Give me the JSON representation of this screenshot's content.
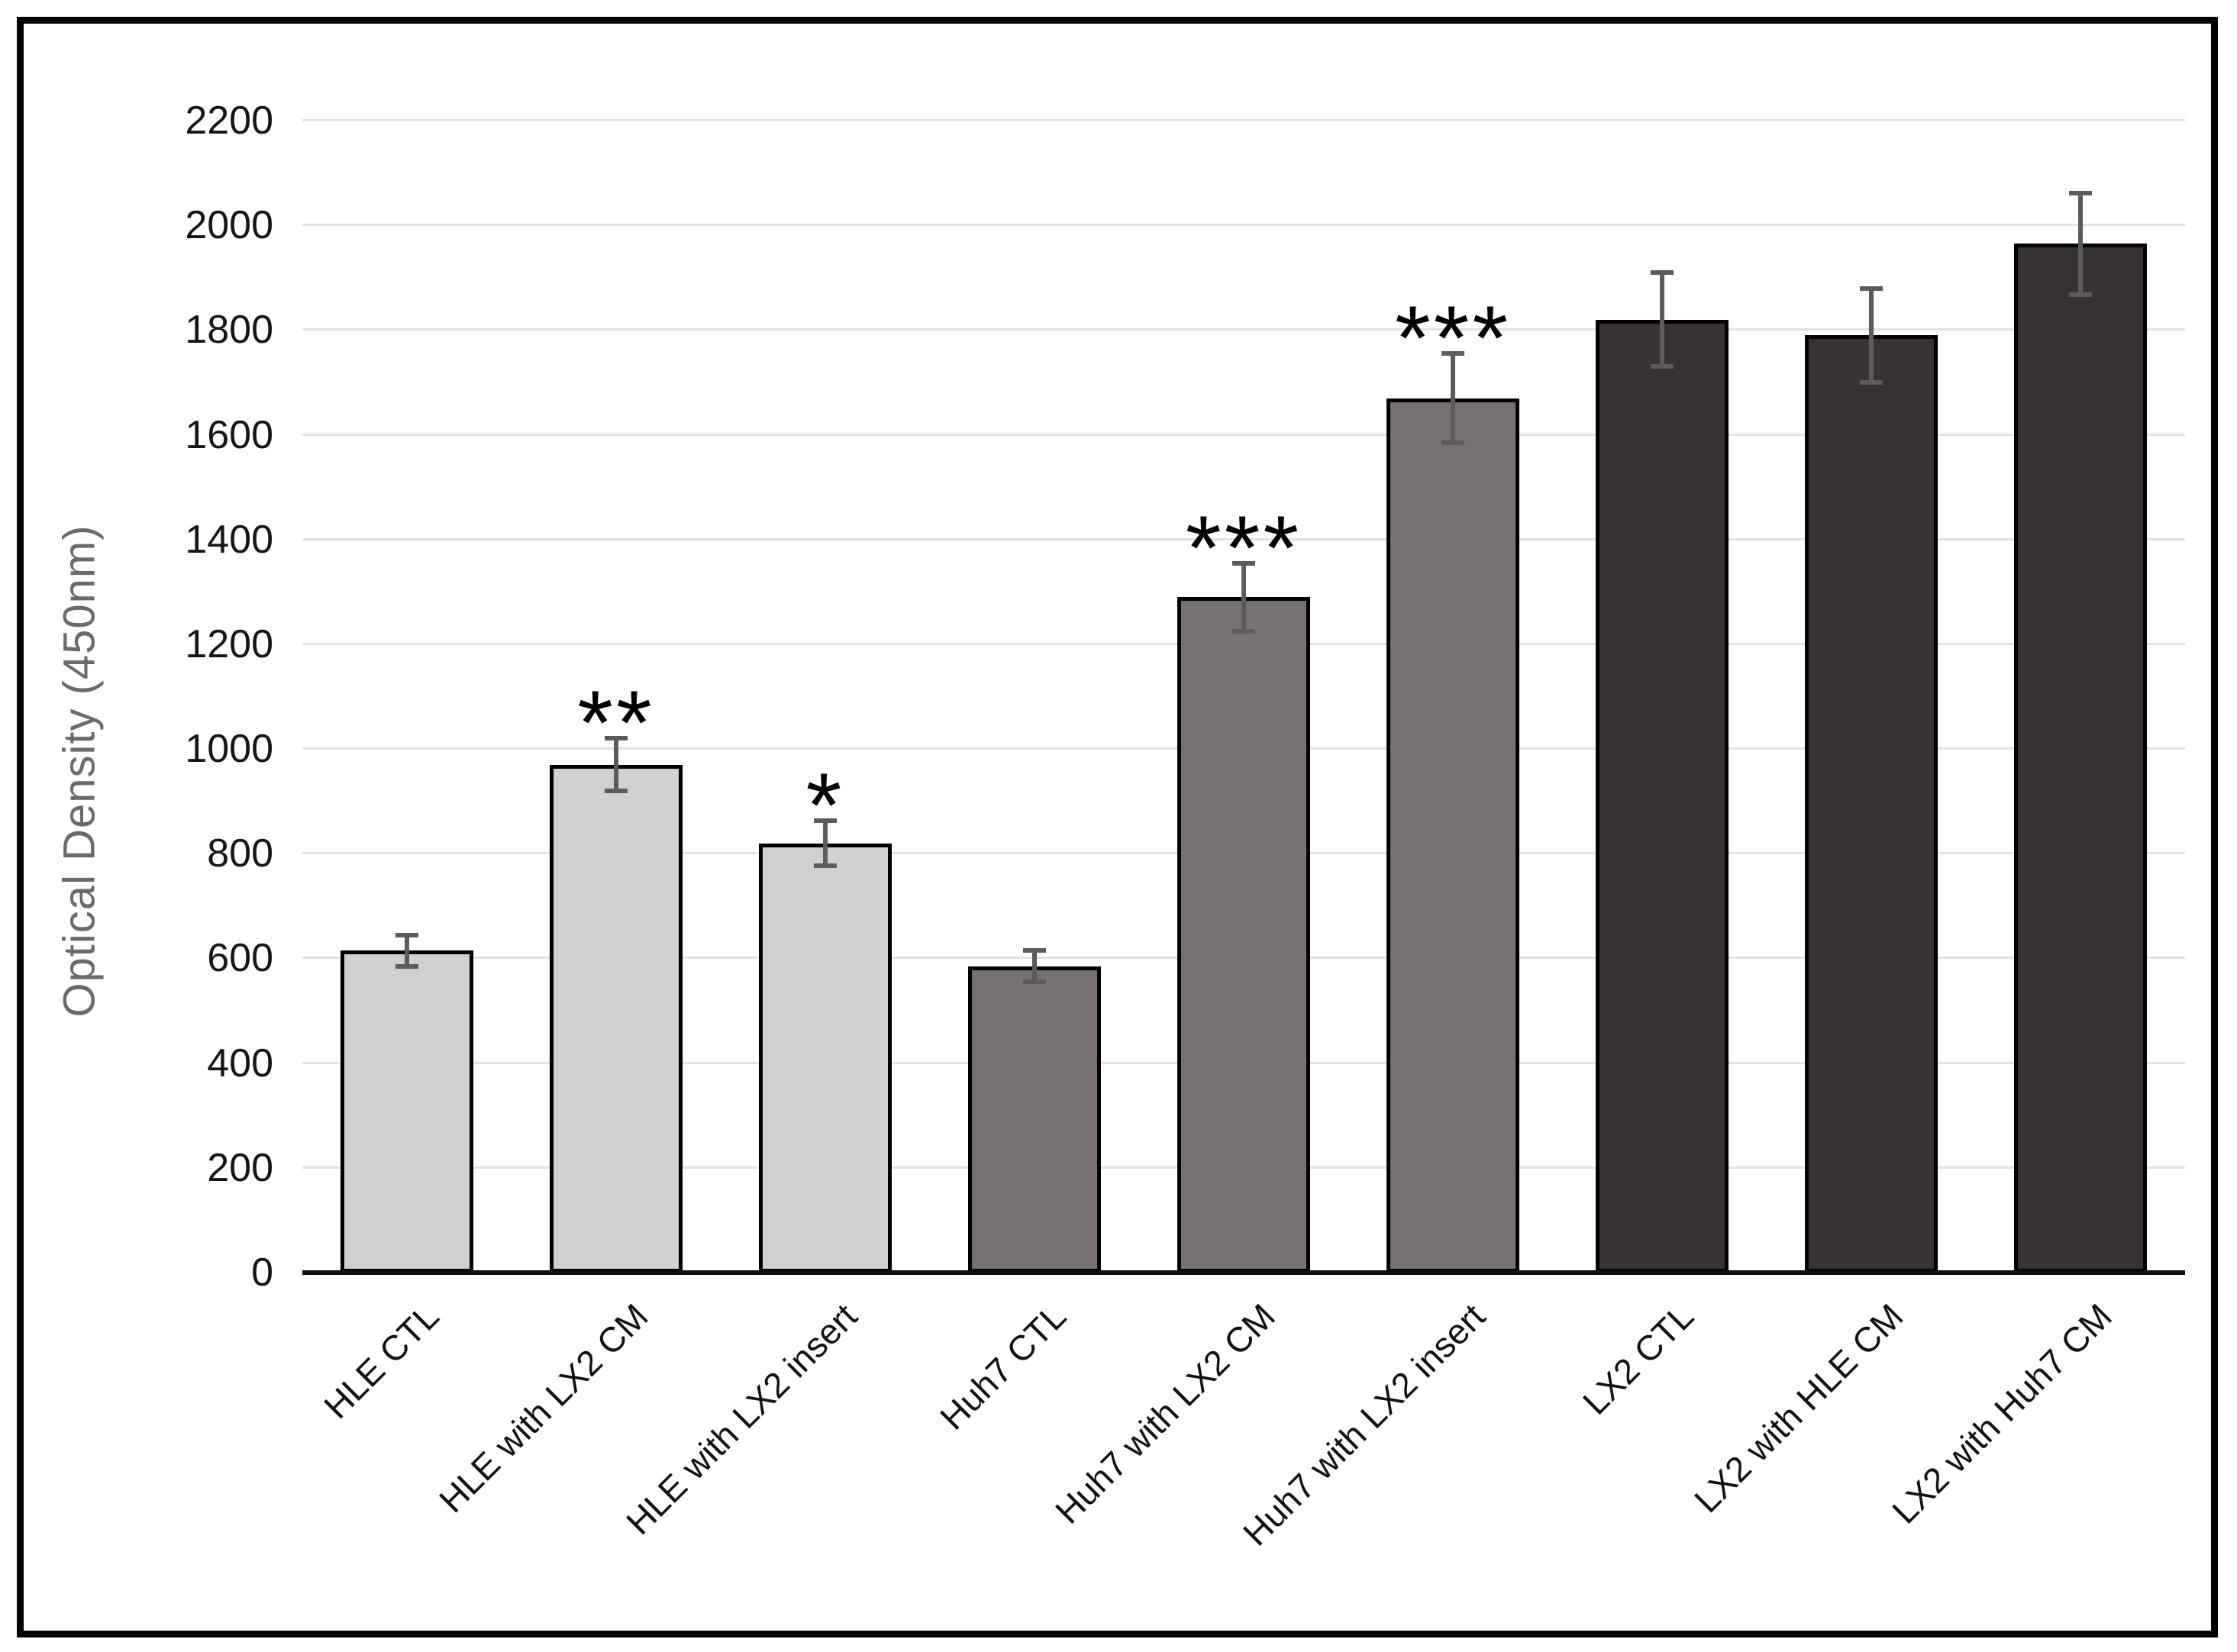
{
  "figure": {
    "background": "#ffffff",
    "border_color": "#000000"
  },
  "chart_data": {
    "type": "bar",
    "title": "",
    "xlabel": "",
    "ylabel": "Optical Density (450nm)",
    "ylim": [
      0,
      2200
    ],
    "gridline_step": 200,
    "grid": true,
    "legend_position": "none",
    "y_tick_labels": [
      "0",
      "200",
      "400",
      "600",
      "800",
      "1000",
      "1200",
      "1400",
      "1600",
      "1800",
      "2000",
      "2200"
    ],
    "categories": [
      "HLE CTL",
      "HLE with LX2 CM",
      "HLE with LX2 insert",
      "Huh7 CTL",
      "Huh7 with LX2 CM",
      "Huh7 with LX2 insert",
      "LX2 CTL",
      "LX2 with HLE CM",
      "LX2 with Huh7 CM"
    ],
    "values": [
      615,
      970,
      820,
      585,
      1290,
      1670,
      1820,
      1790,
      1965
    ],
    "errors": [
      30,
      50,
      43,
      30,
      65,
      85,
      90,
      90,
      97
    ],
    "significance": [
      "",
      "**",
      "*",
      "",
      "***",
      "***",
      "",
      "",
      ""
    ],
    "bar_colors": [
      "#d2cfd0",
      "#d2cfd0",
      "#d2cfd0",
      "#787172",
      "#787172",
      "#787172",
      "#393233",
      "#393233",
      "#393233"
    ],
    "bar_border_color": "#000000",
    "error_bar_color": "#5d5a5b",
    "gridline_color": "#e3e1e1",
    "axis_line_color": "#0f0f0f",
    "tick_label_color": "#151515",
    "ylabel_color": "#6a6a6a"
  }
}
